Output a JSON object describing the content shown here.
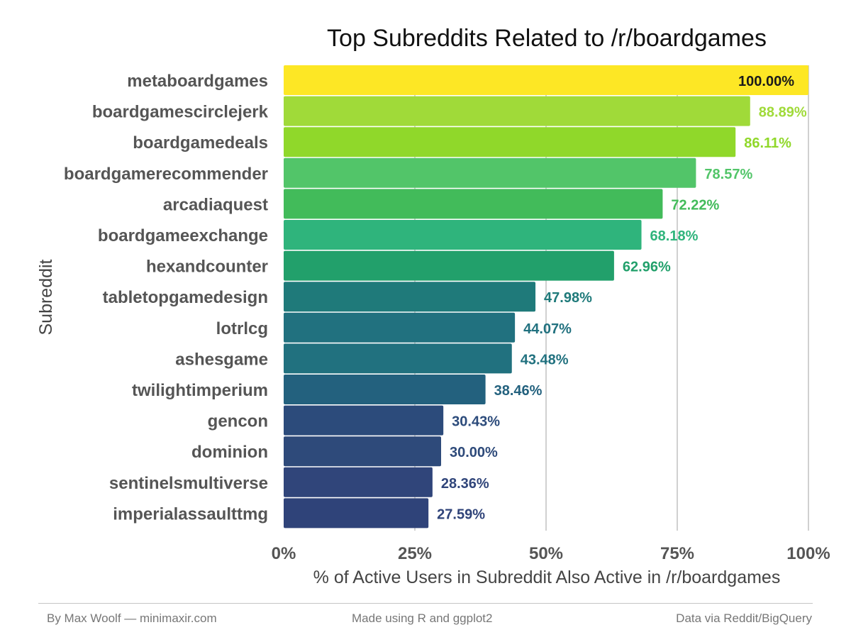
{
  "chart_data": {
    "type": "bar",
    "orientation": "horizontal",
    "title": "Top Subreddits Related to /r/boardgames",
    "xlabel": "% of Active Users in Subreddit Also Active in /r/boardgames",
    "ylabel": "Subreddit",
    "xlim": [
      0,
      100
    ],
    "x_ticks": [
      "0%",
      "25%",
      "50%",
      "75%",
      "100%"
    ],
    "grid": "vertical",
    "categories": [
      "metaboardgames",
      "boardgamescirclejerk",
      "boardgamedeals",
      "boardgamerecommender",
      "arcadiaquest",
      "boardgameexchange",
      "hexandcounter",
      "tabletopgamedesign",
      "lotrlcg",
      "ashesgame",
      "twilightimperium",
      "gencon",
      "dominion",
      "sentinelsmultiverse",
      "imperialassaulttmg"
    ],
    "values": [
      100.0,
      88.89,
      86.11,
      78.57,
      72.22,
      68.18,
      62.96,
      47.98,
      44.07,
      43.48,
      38.46,
      30.43,
      30.0,
      28.36,
      27.59
    ],
    "value_labels": [
      "100.00%",
      "88.89%",
      "86.11%",
      "78.57%",
      "72.22%",
      "68.18%",
      "62.96%",
      "47.98%",
      "44.07%",
      "43.48%",
      "38.46%",
      "30.43%",
      "30.00%",
      "28.36%",
      "27.59%"
    ],
    "colors": [
      "#fde725",
      "#a0da39",
      "#90d82a",
      "#52c569",
      "#42bb5a",
      "#2fb47c",
      "#22a06b",
      "#1f7a7a",
      "#21717f",
      "#21717f",
      "#23617e",
      "#2c4b7b",
      "#2e4a7a",
      "#30457a",
      "#2f4379"
    ],
    "label_colors": [
      "#1a1a1a",
      "#a0da39",
      "#90d82a",
      "#52c569",
      "#42bb5a",
      "#2fb47c",
      "#22a06b",
      "#1f7a7a",
      "#21717f",
      "#21717f",
      "#23617e",
      "#2c4b7b",
      "#2e4a7a",
      "#30457a",
      "#2f4379"
    ]
  },
  "footer": {
    "left": "By Max Woolf — minimaxir.com",
    "center": "Made using R and ggplot2",
    "right": "Data via Reddit/BigQuery"
  }
}
